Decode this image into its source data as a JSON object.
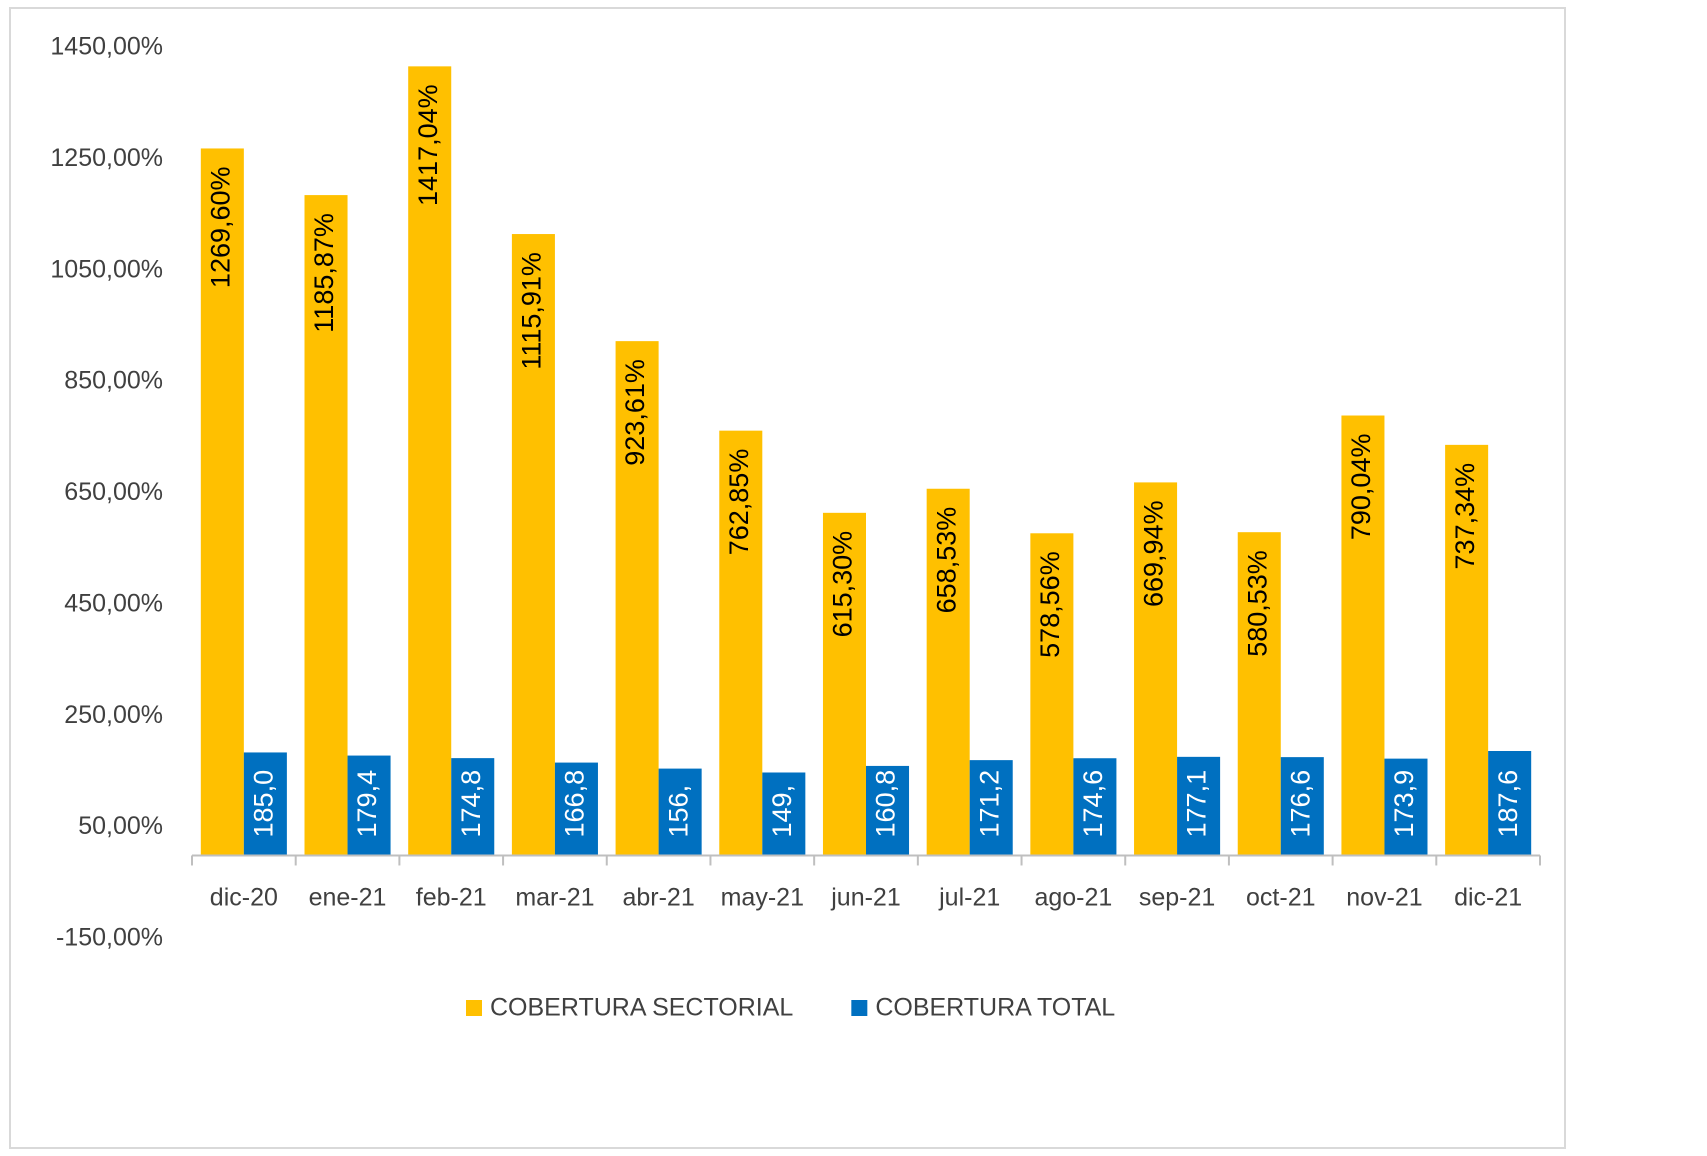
{
  "chart_data": {
    "type": "bar",
    "categories": [
      "dic-20",
      "ene-21",
      "feb-21",
      "mar-21",
      "abr-21",
      "may-21",
      "jun-21",
      "jul-21",
      "ago-21",
      "sep-21",
      "oct-21",
      "nov-21",
      "dic-21"
    ],
    "series": [
      {
        "name": "COBERTURA SECTORIAL",
        "color": "#ffc000",
        "values": [
          1269.6,
          1185.87,
          1417.04,
          1115.91,
          923.61,
          762.85,
          615.3,
          658.53,
          578.56,
          669.94,
          580.53,
          790.04,
          737.34
        ],
        "value_labels": [
          "1269,60%",
          "1185,87%",
          "1417,04%",
          "1115,91%",
          "923,61%",
          "762,85%",
          "615,30%",
          "658,53%",
          "578,56%",
          "669,94%",
          "580,53%",
          "790,04%",
          "737,34%"
        ]
      },
      {
        "name": "COBERTURA TOTAL",
        "color": "#0070c0",
        "values": [
          185.0,
          179.4,
          174.8,
          166.8,
          156,
          149,
          160.8,
          171.2,
          174.6,
          177.1,
          176.6,
          173.9,
          187.6
        ],
        "value_labels": [
          "185,0",
          "179,4",
          "174,8",
          "166,8",
          "156,",
          "149,",
          "160,8",
          "171,2",
          "174,6",
          "177,1",
          "176,6",
          "173,9",
          "187,6"
        ]
      }
    ],
    "ylim": [
      -150,
      1450
    ],
    "yticks": [
      {
        "value": -150,
        "label": "-150,00%"
      },
      {
        "value": 50,
        "label": "50,00%"
      },
      {
        "value": 250,
        "label": "250,00%"
      },
      {
        "value": 450,
        "label": "450,00%"
      },
      {
        "value": 650,
        "label": "650,00%"
      },
      {
        "value": 850,
        "label": "850,00%"
      },
      {
        "value": 1050,
        "label": "1050,00%"
      },
      {
        "value": 1250,
        "label": "1250,00%"
      },
      {
        "value": 1450,
        "label": "1450,00%"
      }
    ],
    "grid": false,
    "legend": "bottom"
  }
}
